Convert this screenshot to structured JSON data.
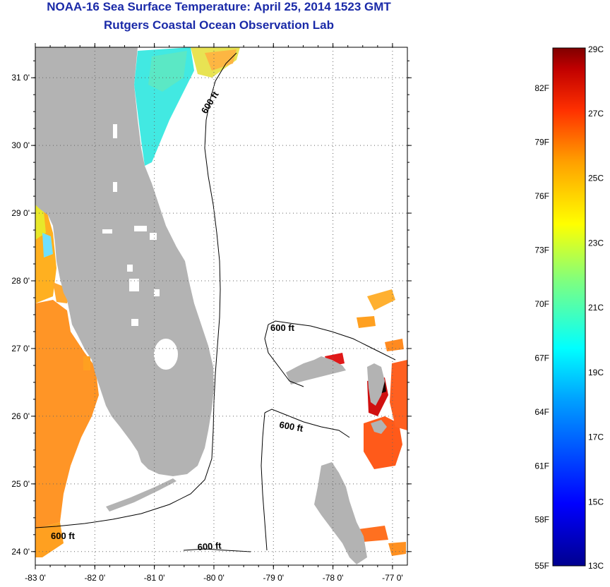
{
  "title_line1": "NOAA-16 Sea Surface Temperature:  April 25, 2014 1523 GMT",
  "title_line2": "Rutgers Coastal Ocean Observation Lab",
  "map": {
    "lat_ticks": [
      {
        "value": 31,
        "label": "31 0'"
      },
      {
        "value": 30,
        "label": "30 0'"
      },
      {
        "value": 29,
        "label": "29 0'"
      },
      {
        "value": 28,
        "label": "28 0'"
      },
      {
        "value": 27,
        "label": "27 0'"
      },
      {
        "value": 26,
        "label": "26 0'"
      },
      {
        "value": 25,
        "label": "25 0'"
      },
      {
        "value": 24,
        "label": "24 0'"
      }
    ],
    "lon_ticks": [
      {
        "value": -83,
        "label": "-83 0'"
      },
      {
        "value": -82,
        "label": "-82 0'"
      },
      {
        "value": -81,
        "label": "-81 0'"
      },
      {
        "value": -80,
        "label": "-80 0'"
      },
      {
        "value": -79,
        "label": "-79 0'"
      },
      {
        "value": -78,
        "label": "-78 0'"
      },
      {
        "value": -77,
        "label": "-77 0'"
      }
    ],
    "lon_range": [
      -83,
      -76.75
    ],
    "lat_range": [
      23.8,
      31.45
    ],
    "contour_labels": [
      "600 ft",
      "600 ft",
      "600 ft",
      "600 ft",
      "600 ft"
    ],
    "land_color": "#b3b3b3"
  },
  "colorbar": {
    "celsius_labels": [
      "29C",
      "27C",
      "25C",
      "23C",
      "21C",
      "19C",
      "17C",
      "15C",
      "13C"
    ],
    "fahrenheit_labels": [
      "82F",
      "79F",
      "76F",
      "73F",
      "70F",
      "67F",
      "64F",
      "61F",
      "58F",
      "55F"
    ],
    "colors": [
      "#00008f",
      "#0000ff",
      "#00a0ff",
      "#00ffff",
      "#7fff7f",
      "#ffff00",
      "#ffa000",
      "#ff3000",
      "#c00000",
      "#800000"
    ]
  }
}
